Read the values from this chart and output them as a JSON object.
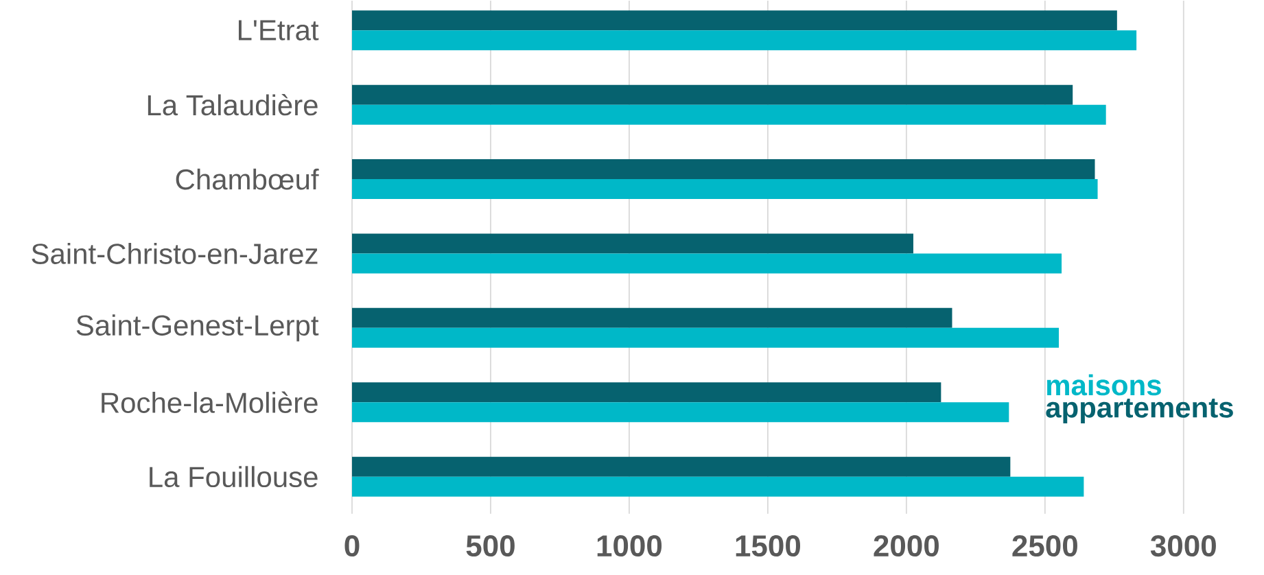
{
  "chart_data": {
    "type": "bar",
    "orientation": "horizontal",
    "categories": [
      "L'Etrat",
      "La Talaudière",
      "Chambœuf",
      "Saint-Christo-en-Jarez",
      "Saint-Genest-Lerpt",
      "Roche-la-Molière",
      "La Fouillouse"
    ],
    "series": [
      {
        "name": "appartements",
        "color": "#06626f",
        "values": [
          2760,
          2600,
          2680,
          2025,
          2165,
          2125,
          2375
        ]
      },
      {
        "name": "maisons",
        "color": "#00b8c8",
        "values": [
          2830,
          2720,
          2690,
          2560,
          2550,
          2370,
          2640
        ]
      }
    ],
    "xlim": [
      0,
      3000
    ],
    "xticks": [
      0,
      500,
      1000,
      1500,
      2000,
      2500,
      3000
    ],
    "grid": "x",
    "legend": "bottom right"
  }
}
